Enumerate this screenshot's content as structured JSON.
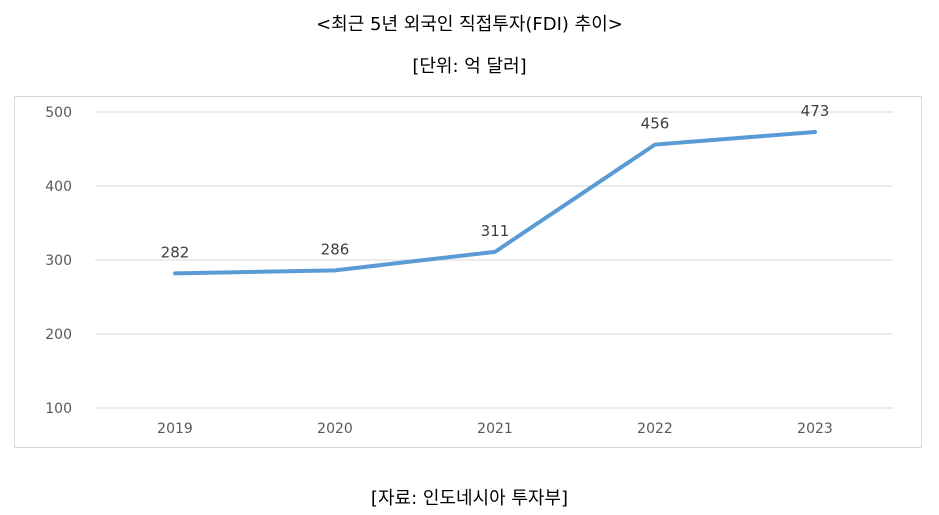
{
  "header": {
    "title": "<최근 5년 외국인 직접투자(FDI) 추이>",
    "unit": "[단위: 억 달러]"
  },
  "footer": {
    "source": "[자료: 인도네시아 투자부]"
  },
  "chart_data": {
    "type": "line",
    "categories": [
      "2019",
      "2020",
      "2021",
      "2022",
      "2023"
    ],
    "series": [
      {
        "values": [
          282,
          286,
          311,
          456,
          473
        ]
      }
    ],
    "data_labels": [
      "282",
      "286",
      "311",
      "456",
      "473"
    ],
    "yticks": [
      "500",
      "400",
      "300",
      "200",
      "100"
    ],
    "ytick_values": [
      500,
      400,
      300,
      200,
      100
    ],
    "ylim": [
      100,
      500
    ],
    "grid": true,
    "legend": "none",
    "line_color": "#5b9bd5",
    "grid_color": "#d9d9d9"
  }
}
